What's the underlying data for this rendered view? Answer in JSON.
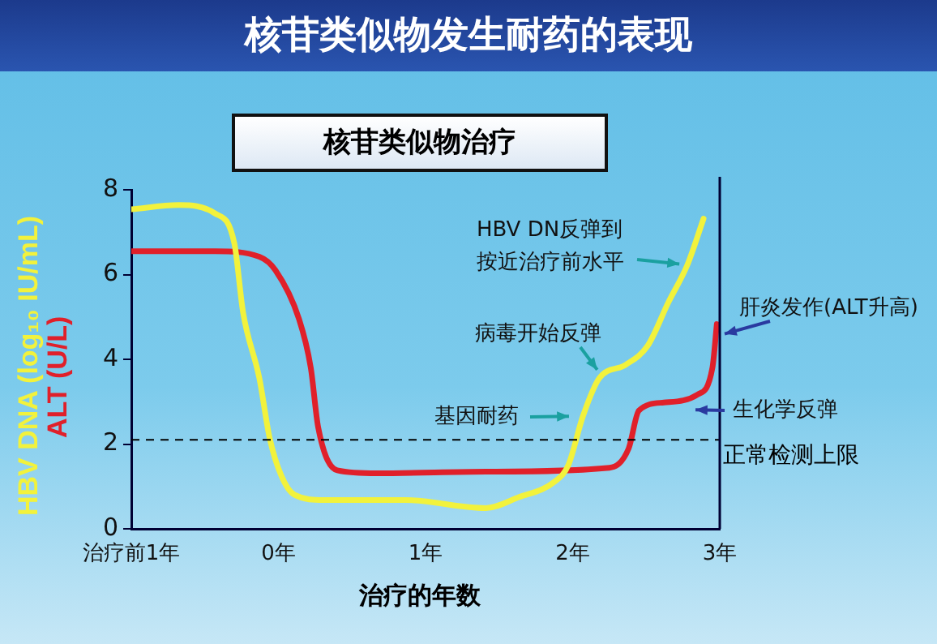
{
  "chart_data": {
    "type": "line",
    "title": "核苷类似物发生耐药的表现",
    "subtitle": "核苷类似物治疗",
    "xlabel": "治疗的年数",
    "xlim": [
      -1,
      3
    ],
    "xticks": [
      {
        "value": -1,
        "label": "治疗前1年"
      },
      {
        "value": 0,
        "label": "0年"
      },
      {
        "value": 1,
        "label": "1年"
      },
      {
        "value": 2,
        "label": "2年"
      },
      {
        "value": 3,
        "label": "3年"
      }
    ],
    "ylim": [
      0,
      8
    ],
    "yticks": [
      0,
      2,
      4,
      6,
      8
    ],
    "legend": "left",
    "marker": "none",
    "line_style": "solid",
    "series": [
      {
        "name": "HBV DNA (log₁₀ IU/mL)",
        "color": "#f2f23c",
        "x": [
          -1,
          -0.68,
          -0.43,
          -0.3,
          -0.24,
          -0.13,
          -0.06,
          0.02,
          0.11,
          0.31,
          0.86,
          1.41,
          1.63,
          1.88,
          1.97,
          2.07,
          2.18,
          2.36,
          2.51,
          2.65,
          2.78,
          2.89
        ],
        "values": [
          7.54,
          7.64,
          7.44,
          6.74,
          5.1,
          3.56,
          2.15,
          1.25,
          0.8,
          0.68,
          0.68,
          0.49,
          0.74,
          1.12,
          1.5,
          2.66,
          3.55,
          3.87,
          4.32,
          5.34,
          6.23,
          7.32
        ]
      },
      {
        "name": "ALT (U/L)",
        "color": "#e0202a",
        "x": [
          -1,
          -0.43,
          -0.13,
          -0.02,
          0.14,
          0.22,
          0.27,
          0.4,
          0.67,
          1.41,
          2.25,
          2.38,
          2.45,
          2.62,
          2.85,
          2.95,
          2.98
        ],
        "values": [
          6.55,
          6.55,
          6.42,
          6.1,
          4.95,
          3.8,
          2.4,
          1.38,
          1.31,
          1.35,
          1.44,
          1.89,
          2.79,
          2.98,
          3.17,
          3.8,
          4.83
        ]
      }
    ],
    "ref_lines": [
      {
        "axis": "y",
        "value": 2.1,
        "label": "正常检测上限",
        "color": "#000000",
        "line_style": "dashed"
      },
      {
        "axis": "x",
        "value": 3,
        "color": "#000033",
        "line_style": "solid"
      }
    ],
    "annotations": [
      {
        "text": "HBV DN反弹到按近治疗前水平",
        "x": 2.78,
        "y": 6.23
      },
      {
        "text": "病毒开始反弹",
        "x": 2.2,
        "y": 3.6
      },
      {
        "text": "基因耐药",
        "x": 2.03,
        "y": 2.66
      },
      {
        "text": "肝炎发作(ALT升高)",
        "x": 2.98,
        "y": 4.55
      },
      {
        "text": "生化学反弹",
        "x": 2.78,
        "y": 2.81
      }
    ]
  }
}
